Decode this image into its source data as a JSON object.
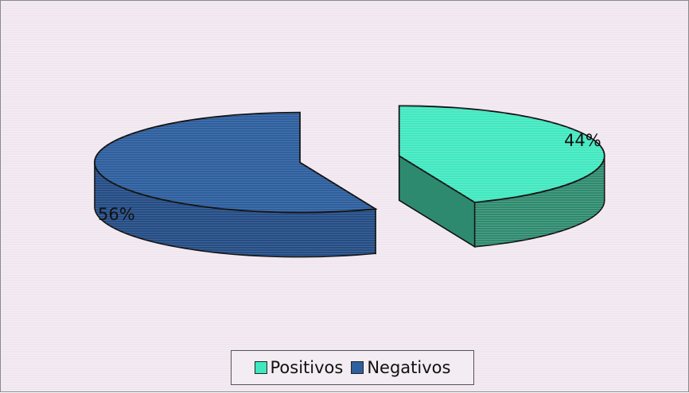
{
  "chart_data": {
    "type": "pie",
    "style": "3d-exploded",
    "categories": [
      "Positivos",
      "Negativos"
    ],
    "values": [
      44,
      56
    ],
    "data_labels": [
      "44%",
      "56%"
    ],
    "colors": {
      "Positivos": {
        "top": "#40E8C0",
        "side": "#2E8A6E"
      },
      "Negativos": {
        "top": "#2E5F9E",
        "side": "#254D85"
      }
    },
    "legend": {
      "placement": "bottom",
      "items": [
        "Positivos",
        "Negativos"
      ]
    }
  }
}
